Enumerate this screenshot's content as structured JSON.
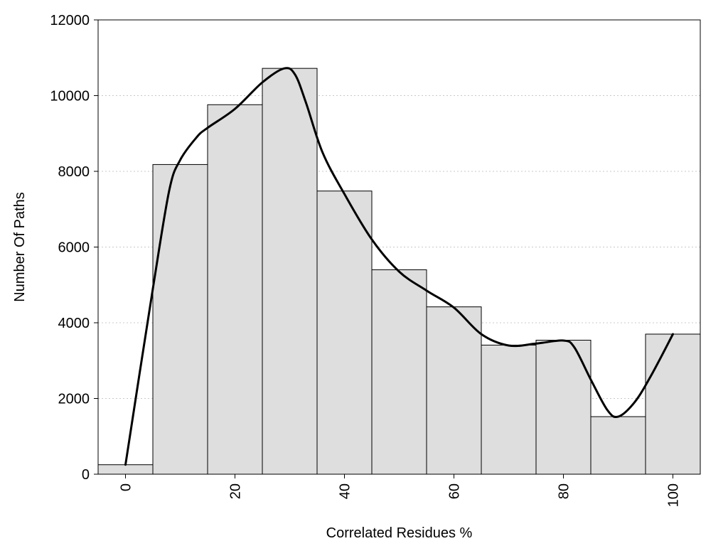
{
  "chart_data": {
    "type": "bar",
    "title": "",
    "xlabel": "Correlated Residues %",
    "ylabel": "Number Of Paths",
    "xlim": [
      -5,
      105
    ],
    "ylim": [
      0,
      12000
    ],
    "x_ticks": [
      0,
      20,
      40,
      60,
      80,
      100
    ],
    "y_ticks": [
      0,
      2000,
      4000,
      6000,
      8000,
      10000,
      12000
    ],
    "grid": "horizontal dotted",
    "legend": "none",
    "bins": [
      {
        "center": 0,
        "value": 250
      },
      {
        "center": 10,
        "value": 8180
      },
      {
        "center": 20,
        "value": 9760
      },
      {
        "center": 30,
        "value": 10720
      },
      {
        "center": 40,
        "value": 7480
      },
      {
        "center": 50,
        "value": 5400
      },
      {
        "center": 60,
        "value": 4420
      },
      {
        "center": 70,
        "value": 3410
      },
      {
        "center": 80,
        "value": 3540
      },
      {
        "center": 90,
        "value": 1520
      },
      {
        "center": 100,
        "value": 3700
      }
    ],
    "bin_width": 10,
    "smooth_curve": {
      "x": [
        0,
        5,
        8,
        10,
        13,
        15,
        20,
        25,
        29,
        31,
        33,
        36,
        40,
        45,
        50,
        55,
        60,
        65,
        70,
        75,
        80,
        82,
        85,
        88,
        90,
        93,
        96,
        100
      ],
      "y": [
        250,
        4900,
        7500,
        8300,
        8900,
        9150,
        9650,
        10350,
        10720,
        10550,
        9800,
        8500,
        7400,
        6200,
        5350,
        4850,
        4400,
        3700,
        3400,
        3450,
        3530,
        3350,
        2500,
        1700,
        1520,
        1900,
        2600,
        3700
      ]
    },
    "colors": {
      "bar_fill": "#dedede",
      "bar_stroke": "#000000",
      "curve": "#000000",
      "grid": "#c8c8c8",
      "frame": "#000000"
    }
  }
}
